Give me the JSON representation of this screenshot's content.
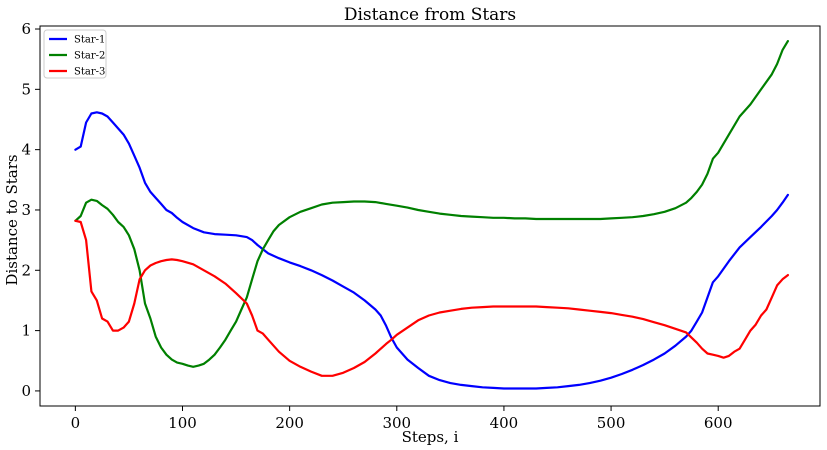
{
  "chart_data": {
    "type": "line",
    "title": "Distance from Stars",
    "xlabel": "Steps, i",
    "ylabel": "Distance to Stars",
    "xlim": [
      -33,
      695
    ],
    "ylim": [
      -0.25,
      6.05
    ],
    "xticks": [
      0,
      100,
      200,
      300,
      400,
      500,
      600
    ],
    "yticks": [
      0,
      1,
      2,
      3,
      4,
      5,
      6
    ],
    "grid": false,
    "legend_position": "top-left",
    "series": [
      {
        "name": "Star-1",
        "color": "#0000ff",
        "x": [
          0,
          5,
          10,
          15,
          20,
          25,
          30,
          35,
          40,
          45,
          50,
          55,
          60,
          65,
          70,
          75,
          80,
          85,
          90,
          95,
          100,
          110,
          120,
          130,
          140,
          150,
          160,
          165,
          170,
          175,
          180,
          190,
          200,
          210,
          220,
          230,
          240,
          250,
          260,
          270,
          280,
          285,
          290,
          295,
          300,
          310,
          320,
          330,
          340,
          350,
          360,
          370,
          380,
          390,
          400,
          410,
          420,
          430,
          440,
          450,
          460,
          470,
          480,
          490,
          500,
          510,
          520,
          530,
          540,
          550,
          560,
          570,
          575,
          580,
          585,
          590,
          595,
          600,
          610,
          620,
          630,
          640,
          650,
          655,
          660,
          665
        ],
        "y": [
          4.0,
          4.05,
          4.45,
          4.6,
          4.62,
          4.6,
          4.55,
          4.45,
          4.35,
          4.25,
          4.1,
          3.9,
          3.7,
          3.45,
          3.3,
          3.2,
          3.1,
          3.0,
          2.95,
          2.87,
          2.8,
          2.7,
          2.63,
          2.6,
          2.59,
          2.58,
          2.55,
          2.5,
          2.42,
          2.35,
          2.28,
          2.2,
          2.13,
          2.07,
          2.0,
          1.92,
          1.83,
          1.73,
          1.63,
          1.5,
          1.35,
          1.25,
          1.08,
          0.88,
          0.72,
          0.52,
          0.38,
          0.25,
          0.18,
          0.13,
          0.1,
          0.08,
          0.06,
          0.05,
          0.04,
          0.04,
          0.04,
          0.04,
          0.05,
          0.06,
          0.08,
          0.1,
          0.13,
          0.17,
          0.22,
          0.28,
          0.35,
          0.43,
          0.52,
          0.62,
          0.75,
          0.9,
          1.0,
          1.15,
          1.3,
          1.55,
          1.8,
          1.9,
          2.15,
          2.38,
          2.55,
          2.72,
          2.9,
          3.0,
          3.12,
          3.25
        ]
      },
      {
        "name": "Star-2",
        "color": "#008000",
        "x": [
          0,
          5,
          10,
          15,
          20,
          25,
          30,
          35,
          40,
          45,
          50,
          55,
          60,
          65,
          70,
          75,
          80,
          85,
          90,
          95,
          100,
          105,
          110,
          115,
          120,
          125,
          130,
          135,
          140,
          145,
          150,
          155,
          160,
          165,
          170,
          175,
          180,
          185,
          190,
          200,
          210,
          220,
          230,
          240,
          250,
          260,
          270,
          280,
          290,
          300,
          310,
          320,
          330,
          340,
          350,
          360,
          370,
          380,
          390,
          400,
          410,
          420,
          430,
          440,
          450,
          460,
          470,
          480,
          490,
          500,
          510,
          520,
          530,
          540,
          550,
          560,
          570,
          575,
          580,
          585,
          590,
          595,
          600,
          610,
          620,
          630,
          640,
          650,
          655,
          660,
          665
        ],
        "y": [
          2.82,
          2.9,
          3.12,
          3.17,
          3.15,
          3.08,
          3.02,
          2.92,
          2.8,
          2.72,
          2.58,
          2.35,
          2.0,
          1.45,
          1.2,
          0.9,
          0.72,
          0.6,
          0.52,
          0.47,
          0.45,
          0.42,
          0.4,
          0.42,
          0.45,
          0.52,
          0.6,
          0.72,
          0.85,
          1.0,
          1.15,
          1.35,
          1.55,
          1.85,
          2.15,
          2.35,
          2.5,
          2.65,
          2.75,
          2.88,
          2.97,
          3.03,
          3.09,
          3.12,
          3.13,
          3.14,
          3.14,
          3.13,
          3.1,
          3.07,
          3.04,
          3.0,
          2.97,
          2.94,
          2.92,
          2.9,
          2.89,
          2.88,
          2.87,
          2.87,
          2.86,
          2.86,
          2.85,
          2.85,
          2.85,
          2.85,
          2.85,
          2.85,
          2.85,
          2.86,
          2.87,
          2.88,
          2.9,
          2.93,
          2.97,
          3.03,
          3.12,
          3.2,
          3.3,
          3.42,
          3.6,
          3.85,
          3.95,
          4.25,
          4.55,
          4.75,
          5.0,
          5.25,
          5.42,
          5.65,
          5.8
        ]
      },
      {
        "name": "Star-3",
        "color": "#ff0000",
        "x": [
          0,
          5,
          10,
          15,
          20,
          25,
          30,
          35,
          40,
          45,
          50,
          55,
          60,
          65,
          70,
          75,
          80,
          85,
          90,
          95,
          100,
          110,
          120,
          130,
          140,
          150,
          160,
          165,
          170,
          175,
          180,
          190,
          200,
          210,
          220,
          230,
          240,
          250,
          260,
          270,
          280,
          290,
          295,
          300,
          310,
          320,
          330,
          340,
          350,
          360,
          370,
          380,
          390,
          400,
          410,
          420,
          430,
          440,
          450,
          460,
          470,
          480,
          490,
          500,
          510,
          520,
          530,
          540,
          550,
          560,
          570,
          580,
          585,
          590,
          595,
          600,
          605,
          610,
          615,
          620,
          625,
          630,
          635,
          640,
          645,
          650,
          655,
          660,
          665
        ],
        "y": [
          2.82,
          2.8,
          2.5,
          1.65,
          1.5,
          1.2,
          1.15,
          1.0,
          1.0,
          1.05,
          1.15,
          1.45,
          1.85,
          2.0,
          2.08,
          2.12,
          2.15,
          2.17,
          2.18,
          2.17,
          2.15,
          2.1,
          2.0,
          1.9,
          1.78,
          1.62,
          1.45,
          1.25,
          1.0,
          0.95,
          0.85,
          0.65,
          0.5,
          0.4,
          0.32,
          0.25,
          0.25,
          0.3,
          0.38,
          0.48,
          0.62,
          0.78,
          0.85,
          0.93,
          1.05,
          1.17,
          1.25,
          1.3,
          1.33,
          1.36,
          1.38,
          1.39,
          1.4,
          1.4,
          1.4,
          1.4,
          1.4,
          1.39,
          1.38,
          1.37,
          1.35,
          1.33,
          1.31,
          1.29,
          1.26,
          1.23,
          1.19,
          1.14,
          1.09,
          1.03,
          0.97,
          0.8,
          0.7,
          0.62,
          0.6,
          0.58,
          0.55,
          0.58,
          0.65,
          0.7,
          0.85,
          1.0,
          1.1,
          1.25,
          1.35,
          1.55,
          1.75,
          1.85,
          1.92
        ]
      }
    ]
  }
}
